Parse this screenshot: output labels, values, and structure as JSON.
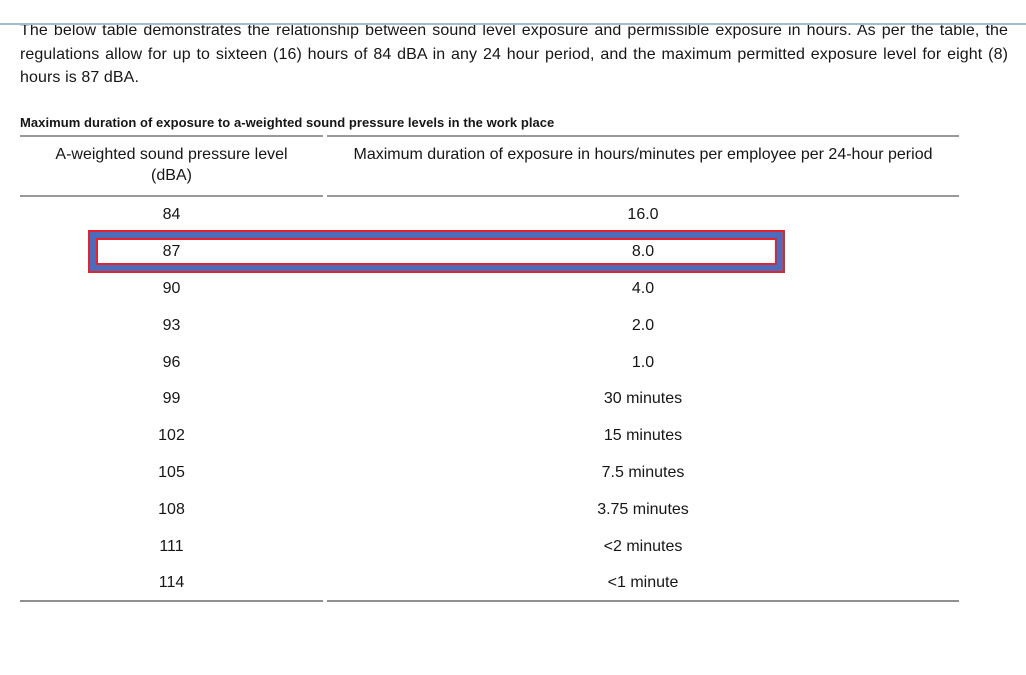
{
  "page": {
    "intro_paragraph": "The below table demonstrates the relationship between sound level exposure and permissible exposure in hours. As per the table, the regulations allow for up to sixteen (16) hours of 84 dBA in any 24 hour period, and the maximum permitted exposure level for eight (8) hours is 87 dBA."
  },
  "table": {
    "caption": "Maximum duration of exposure to a-weighted sound pressure levels in the work place",
    "columns": [
      "A-weighted sound pressure level (dBA)",
      "Maximum duration of exposure in hours/minutes per employee per 24-hour period"
    ],
    "rows": [
      {
        "level": "84",
        "duration": "16.0"
      },
      {
        "level": "87",
        "duration": "8.0"
      },
      {
        "level": "90",
        "duration": "4.0"
      },
      {
        "level": "93",
        "duration": "2.0"
      },
      {
        "level": "96",
        "duration": "1.0"
      },
      {
        "level": "99",
        "duration": "30 minutes"
      },
      {
        "level": "102",
        "duration": "15 minutes"
      },
      {
        "level": "105",
        "duration": "7.5 minutes"
      },
      {
        "level": "108",
        "duration": "3.75 minutes"
      },
      {
        "level": "111",
        "duration": "<2 minutes"
      },
      {
        "level": "114",
        "duration": "<1 minute"
      }
    ],
    "highlighted_row_index": 1
  },
  "colors": {
    "top_divider": "#a4bad6",
    "table_rule": "#999999",
    "highlight_outline_red": "#e3242f",
    "highlight_band_blue": "#4a6cba",
    "text": "#161616"
  }
}
